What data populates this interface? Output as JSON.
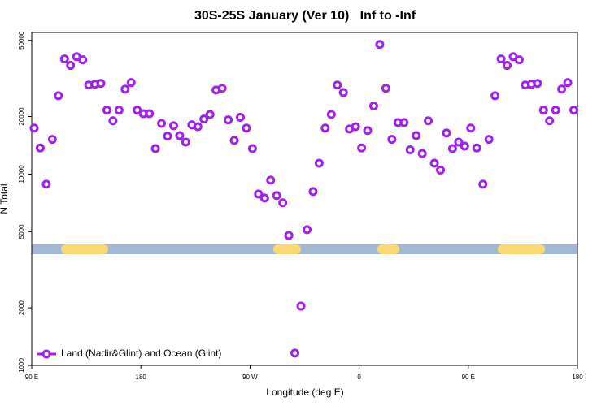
{
  "chart_data": {
    "type": "scatter",
    "title": "30S-25S January (Ver 10)   Inf to -Inf",
    "x_label": "Longitude (deg E)",
    "y_label": "N Total",
    "xlim": [
      90,
      540
    ],
    "xticks": [
      {
        "value": 90,
        "label": "90 E"
      },
      {
        "value": 180,
        "label": "180"
      },
      {
        "value": 270,
        "label": "90 W"
      },
      {
        "value": 360,
        "label": "0"
      },
      {
        "value": 450,
        "label": "90 E"
      },
      {
        "value": 540,
        "label": "180"
      }
    ],
    "ylim": [
      1000,
      55000
    ],
    "yticks": [
      1000,
      2000,
      5000,
      10000,
      20000,
      50000
    ],
    "ylog": true,
    "legend": "bottom-left",
    "x": [
      92,
      97,
      102,
      107,
      112,
      117,
      122,
      127,
      132,
      137,
      142,
      147,
      152,
      157,
      162,
      167,
      172,
      177,
      182,
      187,
      192,
      197,
      202,
      207,
      212,
      217,
      222,
      227,
      232,
      237,
      242,
      247,
      252,
      257,
      262,
      267,
      272,
      277,
      282,
      287,
      292,
      297,
      302,
      307,
      312,
      317,
      322,
      327,
      332,
      337,
      342,
      347,
      352,
      357,
      362,
      367,
      372,
      377,
      382,
      387,
      392,
      397,
      402,
      407,
      412,
      417,
      422,
      427,
      432,
      437,
      442,
      447,
      452,
      457,
      462,
      467,
      472,
      477,
      482,
      487,
      492,
      497,
      502,
      507,
      512,
      517,
      522,
      527,
      532,
      537
    ],
    "series": [
      {
        "name": "Land (Nadir&Glint) and Ocean (Glint)",
        "color": "#a020f0",
        "values": [
          17400,
          13700,
          8850,
          15200,
          25700,
          40000,
          37000,
          41100,
          39600,
          29200,
          29500,
          29800,
          21600,
          19000,
          21600,
          27800,
          30100,
          21600,
          20700,
          20700,
          13600,
          18400,
          15800,
          17900,
          15900,
          14700,
          18100,
          17700,
          19400,
          20500,
          27500,
          28100,
          19200,
          15000,
          19800,
          17400,
          13600,
          7870,
          7500,
          9300,
          7730,
          7080,
          4780,
          1160,
          2040,
          5120,
          8110,
          11400,
          17400,
          20500,
          29200,
          26700,
          17200,
          17700,
          13700,
          16900,
          22700,
          47600,
          28100,
          15200,
          18600,
          18600,
          13400,
          15900,
          12800,
          19000,
          11400,
          10500,
          16400,
          13600,
          14700,
          14000,
          17400,
          13700,
          8850,
          15200,
          25700,
          40000,
          37000,
          41100,
          39600,
          29200,
          29500,
          29800,
          21600,
          19000,
          21600,
          27800,
          30100,
          21600
        ]
      }
    ]
  }
}
